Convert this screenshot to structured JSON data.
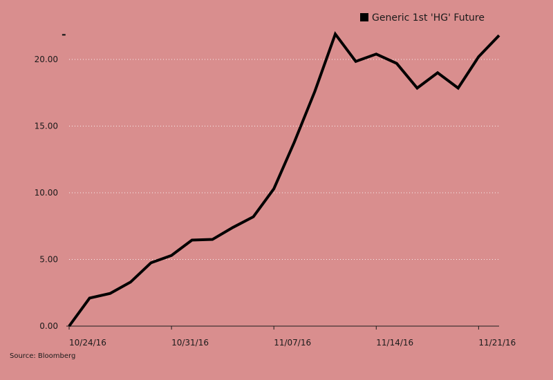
{
  "chart_data": {
    "type": "line",
    "title": "",
    "xlabel": "",
    "ylabel": "",
    "ylim": [
      0,
      22
    ],
    "y_ticks": [
      "0.00",
      "5.00",
      "10.00",
      "15.00",
      "20.00"
    ],
    "x_ticks": [
      "10/24/16",
      "10/31/16",
      "11/07/16",
      "11/14/16",
      "11/21/16"
    ],
    "grid": "horizontal dotted",
    "legend_position": "top-right",
    "series": [
      {
        "name": "Generic 1st 'HG' Future",
        "color": "#000000",
        "x": [
          "10/24/16",
          "10/25/16",
          "10/26/16",
          "10/27/16",
          "10/28/16",
          "10/31/16",
          "11/01/16",
          "11/02/16",
          "11/03/16",
          "11/04/16",
          "11/07/16",
          "11/08/16",
          "11/09/16",
          "11/10/16",
          "11/11/16",
          "11/14/16",
          "11/15/16",
          "11/16/16",
          "11/17/16",
          "11/18/16",
          "11/21/16",
          "11/22/16"
        ],
        "values": [
          0.0,
          2.1,
          2.45,
          3.3,
          4.75,
          5.3,
          6.45,
          6.5,
          7.4,
          8.2,
          10.3,
          13.8,
          17.6,
          21.9,
          19.85,
          20.4,
          19.7,
          17.85,
          19.0,
          17.85,
          20.2,
          21.8
        ]
      }
    ]
  },
  "marker_top": "-",
  "source": "Source: Bloomberg"
}
